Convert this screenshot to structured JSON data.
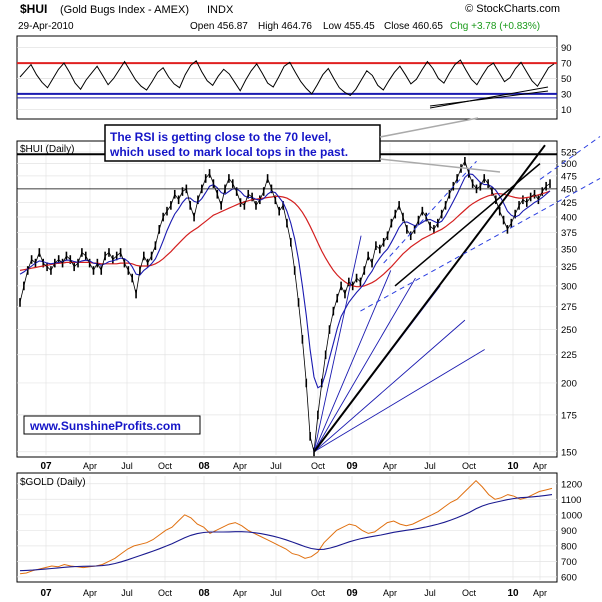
{
  "header": {
    "symbol": "$HUI",
    "name": "(Gold Bugs Index - AMEX)",
    "exchange": "INDX",
    "source": "© StockCharts.com",
    "date": "29-Apr-2010",
    "open": "Open 456.87",
    "high": "High 464.76",
    "low": "Low 455.45",
    "close": "Close 460.65",
    "change": "Chg +3.78 (+0.83%)",
    "change_color": "#1a9a1a"
  },
  "annotation": {
    "line1": "The RSI is getting close to the 70 level,",
    "line2": "which used to mark local tops in the past.",
    "color": "#1515c8"
  },
  "watermark": "www.SunshineProfits.com",
  "colors": {
    "price": "#000000",
    "ma_fast": "#1a1ab0",
    "ma_slow": "#d42020",
    "rsi_upper": "#e02020",
    "rsi_lower": "#1a1ab0",
    "gold": "#e07010",
    "gold_ma": "#1a1a90",
    "channel": "#2b3fe0"
  },
  "chart_data": [
    {
      "type": "line",
      "title": "RSI",
      "yticks": [
        90,
        70,
        50,
        30,
        10
      ],
      "ylim": [
        0,
        100
      ],
      "reference_lines": [
        70,
        30
      ],
      "values": [
        52,
        60,
        68,
        55,
        45,
        38,
        50,
        62,
        70,
        58,
        44,
        36,
        48,
        57,
        66,
        54,
        42,
        50,
        61,
        72,
        60,
        48,
        40,
        35,
        46,
        58,
        64,
        52,
        43,
        38,
        55,
        67,
        73,
        59,
        47,
        41,
        53,
        62,
        56,
        45,
        34,
        48,
        60,
        69,
        57,
        44,
        39,
        52,
        66,
        71,
        58,
        46,
        37,
        30,
        42,
        55,
        63,
        50,
        38,
        32,
        28,
        36,
        48,
        60,
        54,
        41,
        35,
        47,
        58,
        66,
        55,
        43,
        49,
        61,
        72,
        63,
        50,
        44,
        57,
        68,
        74,
        61,
        49,
        42,
        54,
        65,
        70,
        58,
        46,
        51,
        63,
        71,
        59,
        47,
        40,
        52,
        64,
        69
      ]
    },
    {
      "type": "line",
      "title": "$HUI (Daily)",
      "scale": "log",
      "ylim": [
        148,
        545
      ],
      "yticks": [
        525,
        500,
        475,
        450,
        425,
        400,
        375,
        350,
        325,
        300,
        275,
        250,
        225,
        200,
        175,
        150
      ],
      "xticks": [
        "07",
        "Apr",
        "Jul",
        "Oct",
        "08",
        "Apr",
        "Jul",
        "Oct",
        "09",
        "Apr",
        "Jul",
        "Oct",
        "10",
        "Apr"
      ],
      "series": [
        {
          "values": [
            280,
            300,
            320,
            335,
            330,
            345,
            330,
            325,
            320,
            330,
            335,
            330,
            340,
            335,
            325,
            330,
            345,
            340,
            330,
            320,
            330,
            320,
            340,
            345,
            335,
            340,
            345,
            330,
            320,
            310,
            290,
            320,
            340,
            330,
            340,
            355,
            380,
            400,
            410,
            420,
            440,
            430,
            445,
            450,
            420,
            400,
            430,
            450,
            470,
            480,
            460,
            440,
            420,
            450,
            470,
            460,
            445,
            425,
            420,
            440,
            435,
            420,
            430,
            445,
            470,
            450,
            430,
            410,
            420,
            390,
            360,
            320,
            280,
            240,
            200,
            160,
            150,
            175,
            200,
            225,
            250,
            270,
            285,
            300,
            290,
            305,
            300,
            310,
            305,
            320,
            340,
            330,
            355,
            350,
            360,
            370,
            390,
            405,
            420,
            400,
            380,
            370,
            380,
            395,
            410,
            400,
            385,
            380,
            390,
            405,
            420,
            440,
            455,
            470,
            490,
            505,
            480,
            460,
            450,
            455,
            470,
            460,
            445,
            430,
            410,
            395,
            380,
            390,
            405,
            420,
            430,
            425,
            435,
            440,
            430,
            445,
            455,
            460
          ]
        },
        {
          "values": [
            315,
            318,
            322,
            326,
            330,
            333,
            332,
            330,
            329,
            330,
            331,
            332,
            334,
            334,
            332,
            331,
            333,
            334,
            333,
            330,
            329,
            327,
            329,
            332,
            333,
            335,
            337,
            336,
            332,
            325,
            315,
            314,
            320,
            324,
            329,
            336,
            348,
            362,
            378,
            392,
            405,
            414,
            425,
            433,
            433,
            427,
            425,
            432,
            443,
            455,
            458,
            452,
            443,
            440,
            445,
            450,
            450,
            445,
            437,
            434,
            434,
            431,
            429,
            432,
            440,
            445,
            443,
            434,
            425,
            410,
            390,
            365,
            335,
            300,
            265,
            230,
            205,
            196,
            198,
            208,
            222,
            236,
            251,
            264,
            272,
            280,
            286,
            292,
            297,
            303,
            312,
            319,
            329,
            337,
            344,
            350,
            360,
            371,
            383,
            391,
            392,
            389,
            386,
            387,
            391,
            395,
            396,
            393,
            390,
            393,
            402,
            414,
            427,
            441,
            456,
            472,
            479,
            478,
            470,
            462,
            458,
            458,
            454,
            447,
            437,
            424,
            410,
            403,
            400,
            403,
            410,
            415,
            420,
            425,
            429,
            434,
            440,
            446
          ]
        },
        {
          "values": [
            320,
            321,
            322,
            323,
            324,
            325,
            326,
            327,
            328,
            329,
            330,
            330,
            331,
            331,
            331,
            331,
            331,
            331,
            331,
            330,
            330,
            329,
            329,
            329,
            329,
            329,
            330,
            330,
            330,
            329,
            327,
            326,
            326,
            326,
            327,
            329,
            332,
            336,
            341,
            346,
            352,
            358,
            364,
            370,
            375,
            379,
            383,
            388,
            393,
            398,
            403,
            406,
            409,
            412,
            415,
            418,
            421,
            424,
            426,
            428,
            430,
            431,
            432,
            433,
            434,
            435,
            436,
            436,
            435,
            433,
            429,
            424,
            417,
            408,
            397,
            385,
            372,
            359,
            347,
            337,
            328,
            320,
            314,
            309,
            305,
            302,
            300,
            299,
            299,
            300,
            302,
            304,
            307,
            311,
            315,
            320,
            325,
            331,
            337,
            343,
            348,
            353,
            357,
            361,
            365,
            368,
            371,
            374,
            377,
            380,
            384,
            389,
            394,
            400,
            406,
            412,
            418,
            423,
            427,
            431,
            434,
            437,
            439,
            441,
            441,
            440,
            438,
            436,
            434,
            433,
            433,
            434,
            435,
            437,
            439,
            441,
            443,
            446
          ]
        }
      ]
    },
    {
      "type": "line",
      "title": "$GOLD (Daily)",
      "ylim": [
        580,
        1250
      ],
      "yticks": [
        1200,
        1100,
        1000,
        900,
        800,
        700,
        600
      ],
      "xticks": [
        "07",
        "Apr",
        "Jul",
        "Oct",
        "08",
        "Apr",
        "Jul",
        "Oct",
        "09",
        "Apr",
        "Jul",
        "Oct",
        "10",
        "Apr"
      ],
      "series": [
        {
          "values": [
            620,
            625,
            640,
            650,
            660,
            670,
            665,
            680,
            670,
            665,
            660,
            665,
            670,
            680,
            700,
            720,
            750,
            780,
            800,
            810,
            820,
            840,
            870,
            900,
            920,
            960,
            1000,
            980,
            940,
            920,
            880,
            900,
            920,
            940,
            950,
            930,
            900,
            880,
            860,
            840,
            820,
            800,
            780,
            750,
            740,
            720,
            730,
            760,
            820,
            860,
            900,
            920,
            940,
            930,
            900,
            880,
            890,
            920,
            950,
            960,
            940,
            930,
            940,
            960,
            980,
            1000,
            1020,
            1050,
            1080,
            1100,
            1140,
            1180,
            1220,
            1180,
            1130,
            1100,
            1110,
            1130,
            1120,
            1100,
            1110,
            1130,
            1150,
            1160,
            1170
          ]
        },
        {
          "values": [
            640,
            642,
            644,
            647,
            650,
            654,
            658,
            662,
            665,
            667,
            668,
            669,
            670,
            673,
            678,
            686,
            697,
            710,
            724,
            738,
            752,
            766,
            781,
            797,
            814,
            833,
            852,
            868,
            879,
            886,
            889,
            889,
            889,
            890,
            891,
            891,
            889,
            885,
            879,
            871,
            862,
            851,
            839,
            825,
            810,
            795,
            783,
            777,
            778,
            786,
            798,
            812,
            826,
            838,
            848,
            856,
            863,
            870,
            878,
            887,
            894,
            900,
            906,
            913,
            921,
            930,
            940,
            952,
            966,
            981,
            998,
            1017,
            1039,
            1057,
            1070,
            1080,
            1089,
            1098,
            1105,
            1110,
            1113,
            1116,
            1120,
            1125,
            1130
          ]
        }
      ]
    }
  ]
}
